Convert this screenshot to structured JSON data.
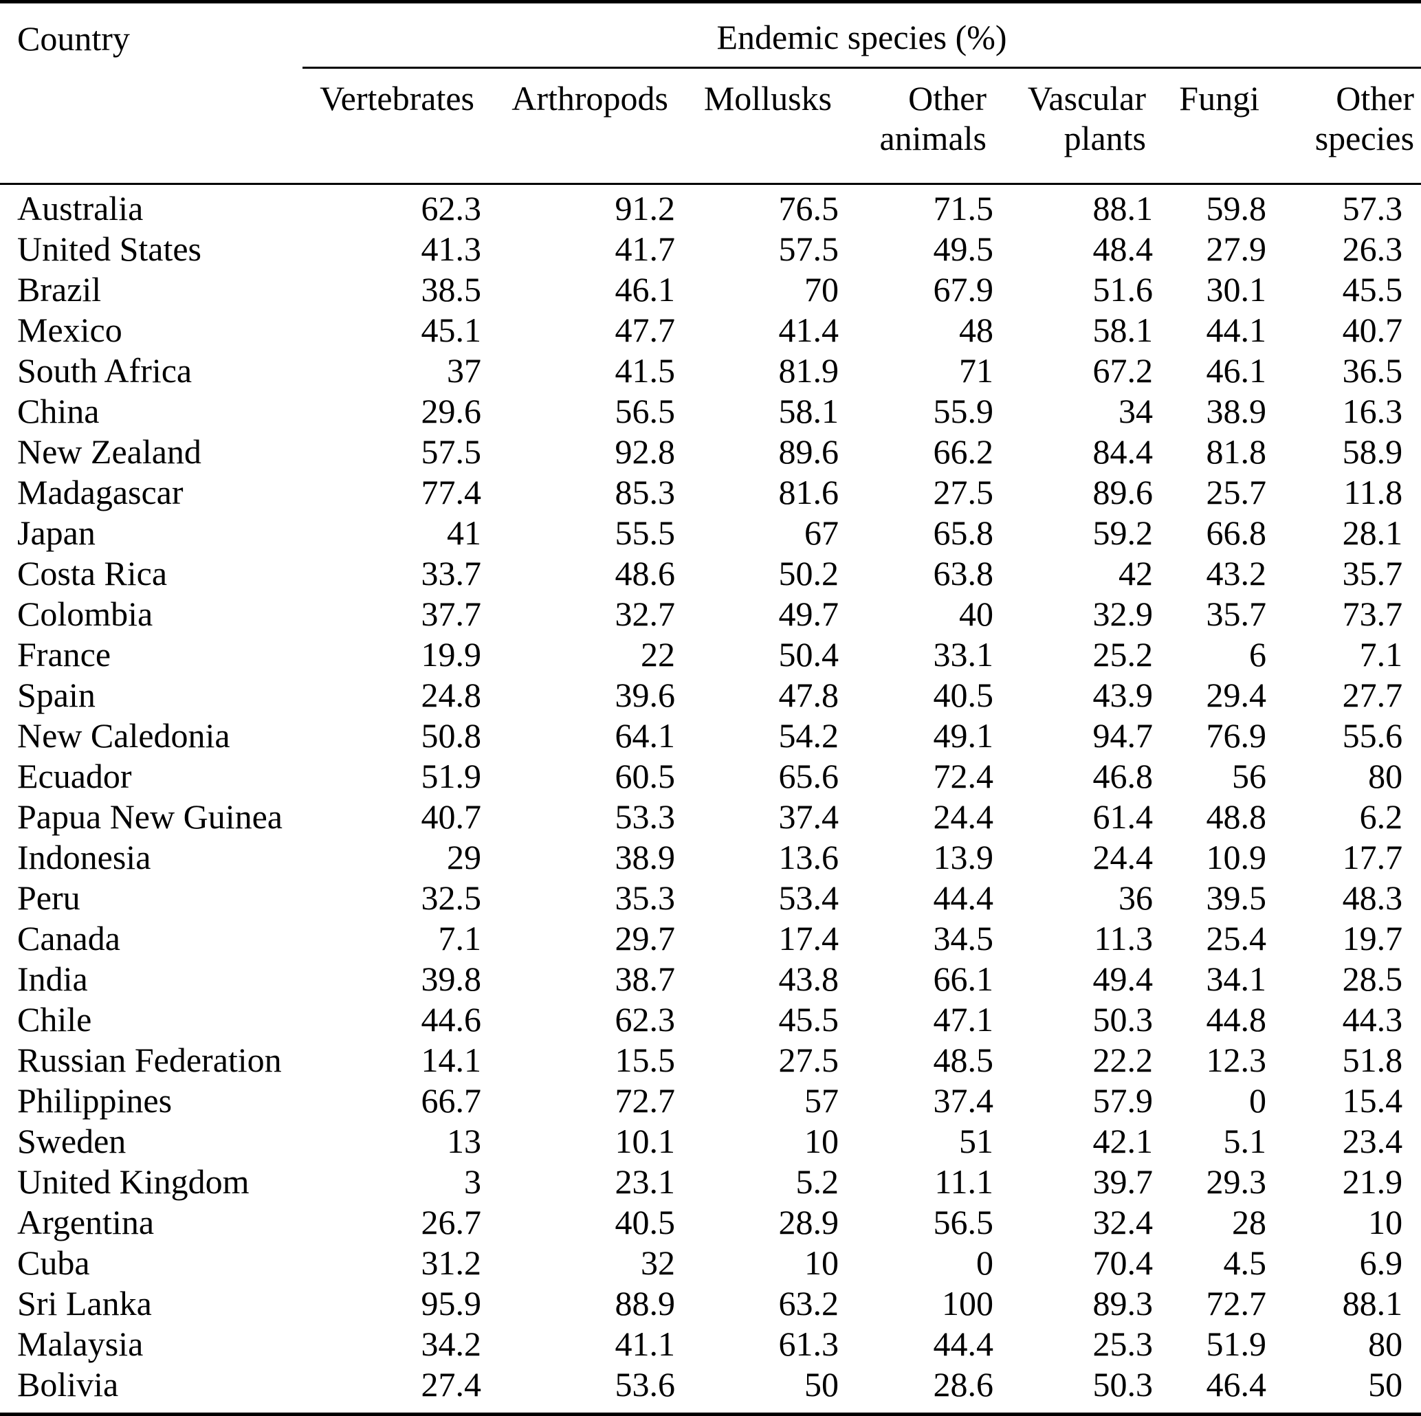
{
  "table": {
    "corner_header": "Country",
    "span_header": "Endemic species (%)",
    "columns": [
      {
        "lines": [
          "Vertebrates"
        ]
      },
      {
        "lines": [
          "Arthropods"
        ]
      },
      {
        "lines": [
          "Mollusks"
        ]
      },
      {
        "lines": [
          "Other",
          "animals"
        ]
      },
      {
        "lines": [
          "Vascular",
          "plants"
        ]
      },
      {
        "lines": [
          "Fungi"
        ]
      },
      {
        "lines": [
          "Other",
          "species"
        ]
      }
    ],
    "rows": [
      {
        "country": "Australia",
        "values": [
          "62.3",
          "91.2",
          "76.5",
          "71.5",
          "88.1",
          "59.8",
          "57.3"
        ]
      },
      {
        "country": "United States",
        "values": [
          "41.3",
          "41.7",
          "57.5",
          "49.5",
          "48.4",
          "27.9",
          "26.3"
        ]
      },
      {
        "country": "Brazil",
        "values": [
          "38.5",
          "46.1",
          "70",
          "67.9",
          "51.6",
          "30.1",
          "45.5"
        ]
      },
      {
        "country": "Mexico",
        "values": [
          "45.1",
          "47.7",
          "41.4",
          "48",
          "58.1",
          "44.1",
          "40.7"
        ]
      },
      {
        "country": "South Africa",
        "values": [
          "37",
          "41.5",
          "81.9",
          "71",
          "67.2",
          "46.1",
          "36.5"
        ]
      },
      {
        "country": "China",
        "values": [
          "29.6",
          "56.5",
          "58.1",
          "55.9",
          "34",
          "38.9",
          "16.3"
        ]
      },
      {
        "country": "New Zealand",
        "values": [
          "57.5",
          "92.8",
          "89.6",
          "66.2",
          "84.4",
          "81.8",
          "58.9"
        ]
      },
      {
        "country": "Madagascar",
        "values": [
          "77.4",
          "85.3",
          "81.6",
          "27.5",
          "89.6",
          "25.7",
          "11.8"
        ]
      },
      {
        "country": "Japan",
        "values": [
          "41",
          "55.5",
          "67",
          "65.8",
          "59.2",
          "66.8",
          "28.1"
        ]
      },
      {
        "country": "Costa Rica",
        "values": [
          "33.7",
          "48.6",
          "50.2",
          "63.8",
          "42",
          "43.2",
          "35.7"
        ]
      },
      {
        "country": "Colombia",
        "values": [
          "37.7",
          "32.7",
          "49.7",
          "40",
          "32.9",
          "35.7",
          "73.7"
        ]
      },
      {
        "country": "France",
        "values": [
          "19.9",
          "22",
          "50.4",
          "33.1",
          "25.2",
          "6",
          "7.1"
        ]
      },
      {
        "country": "Spain",
        "values": [
          "24.8",
          "39.6",
          "47.8",
          "40.5",
          "43.9",
          "29.4",
          "27.7"
        ]
      },
      {
        "country": "New Caledonia",
        "values": [
          "50.8",
          "64.1",
          "54.2",
          "49.1",
          "94.7",
          "76.9",
          "55.6"
        ]
      },
      {
        "country": "Ecuador",
        "values": [
          "51.9",
          "60.5",
          "65.6",
          "72.4",
          "46.8",
          "56",
          "80"
        ]
      },
      {
        "country": "Papua New Guinea",
        "values": [
          "40.7",
          "53.3",
          "37.4",
          "24.4",
          "61.4",
          "48.8",
          "6.2"
        ]
      },
      {
        "country": "Indonesia",
        "values": [
          "29",
          "38.9",
          "13.6",
          "13.9",
          "24.4",
          "10.9",
          "17.7"
        ]
      },
      {
        "country": "Peru",
        "values": [
          "32.5",
          "35.3",
          "53.4",
          "44.4",
          "36",
          "39.5",
          "48.3"
        ]
      },
      {
        "country": "Canada",
        "values": [
          "7.1",
          "29.7",
          "17.4",
          "34.5",
          "11.3",
          "25.4",
          "19.7"
        ]
      },
      {
        "country": "India",
        "values": [
          "39.8",
          "38.7",
          "43.8",
          "66.1",
          "49.4",
          "34.1",
          "28.5"
        ]
      },
      {
        "country": "Chile",
        "values": [
          "44.6",
          "62.3",
          "45.5",
          "47.1",
          "50.3",
          "44.8",
          "44.3"
        ]
      },
      {
        "country": "Russian Federation",
        "values": [
          "14.1",
          "15.5",
          "27.5",
          "48.5",
          "22.2",
          "12.3",
          "51.8"
        ]
      },
      {
        "country": "Philippines",
        "values": [
          "66.7",
          "72.7",
          "57",
          "37.4",
          "57.9",
          "0",
          "15.4"
        ]
      },
      {
        "country": "Sweden",
        "values": [
          "13",
          "10.1",
          "10",
          "51",
          "42.1",
          "5.1",
          "23.4"
        ]
      },
      {
        "country": "United Kingdom",
        "values": [
          "3",
          "23.1",
          "5.2",
          "11.1",
          "39.7",
          "29.3",
          "21.9"
        ]
      },
      {
        "country": "Argentina",
        "values": [
          "26.7",
          "40.5",
          "28.9",
          "56.5",
          "32.4",
          "28",
          "10"
        ]
      },
      {
        "country": "Cuba",
        "values": [
          "31.2",
          "32",
          "10",
          "0",
          "70.4",
          "4.5",
          "6.9"
        ]
      },
      {
        "country": "Sri Lanka",
        "values": [
          "95.9",
          "88.9",
          "63.2",
          "100",
          "89.3",
          "72.7",
          "88.1"
        ]
      },
      {
        "country": "Malaysia",
        "values": [
          "34.2",
          "41.1",
          "61.3",
          "44.4",
          "25.3",
          "51.9",
          "80"
        ]
      },
      {
        "country": "Bolivia",
        "values": [
          "27.4",
          "53.6",
          "50",
          "28.6",
          "50.3",
          "46.4",
          "50"
        ]
      }
    ]
  },
  "colors": {
    "text": "#000000",
    "background": "#ffffff",
    "rule": "#000000"
  }
}
